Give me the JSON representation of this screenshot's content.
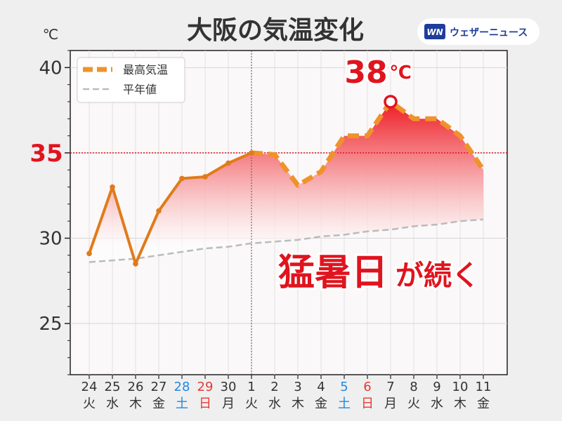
{
  "title": "大阪の気温変化",
  "unit_label": "℃",
  "logo": {
    "text": "ウェザーニュース",
    "mark": "WN"
  },
  "highlight": {
    "value_text": "38",
    "unit": "℃",
    "threshold_text": "35"
  },
  "headline": {
    "part1": "猛暑日",
    "part2": "が続く"
  },
  "colors": {
    "max_line": "#e07b1a",
    "forecast_line": "#f0922a",
    "normal_line": "#bbbbbb",
    "fill_top": "#ee1b24",
    "threshold": "#e0141e",
    "saturday": "#1e88e5",
    "sunday": "#e53935",
    "text": "#333333"
  },
  "chart_data": {
    "type": "line",
    "ylim": [
      22,
      41
    ],
    "yticks": [
      25,
      30,
      35,
      40
    ],
    "threshold": 35,
    "categories": [
      {
        "date": "24",
        "day": "火",
        "kind": "weekday"
      },
      {
        "date": "25",
        "day": "水",
        "kind": "weekday"
      },
      {
        "date": "26",
        "day": "木",
        "kind": "weekday"
      },
      {
        "date": "27",
        "day": "金",
        "kind": "weekday"
      },
      {
        "date": "28",
        "day": "土",
        "kind": "saturday"
      },
      {
        "date": "29",
        "day": "日",
        "kind": "sunday"
      },
      {
        "date": "30",
        "day": "月",
        "kind": "weekday"
      },
      {
        "date": "1",
        "day": "火",
        "kind": "weekday"
      },
      {
        "date": "2",
        "day": "水",
        "kind": "weekday"
      },
      {
        "date": "3",
        "day": "木",
        "kind": "weekday"
      },
      {
        "date": "4",
        "day": "金",
        "kind": "weekday"
      },
      {
        "date": "5",
        "day": "土",
        "kind": "saturday"
      },
      {
        "date": "6",
        "day": "日",
        "kind": "sunday"
      },
      {
        "date": "7",
        "day": "月",
        "kind": "weekday"
      },
      {
        "date": "8",
        "day": "火",
        "kind": "weekday"
      },
      {
        "date": "9",
        "day": "水",
        "kind": "weekday"
      },
      {
        "date": "10",
        "day": "木",
        "kind": "weekday"
      },
      {
        "date": "11",
        "day": "金",
        "kind": "weekday"
      }
    ],
    "series": [
      {
        "name": "最高気温",
        "style": "observed-solid-then-forecast-dashed",
        "values": [
          29.1,
          33.0,
          28.5,
          31.6,
          33.5,
          33.6,
          34.4,
          35.0,
          34.9,
          33.1,
          33.9,
          36.0,
          36.0,
          38.0,
          37.0,
          37.0,
          36.0,
          34.0
        ],
        "observed_until_index": 7
      },
      {
        "name": "平年値",
        "style": "dashed",
        "values": [
          28.6,
          28.7,
          28.8,
          29.0,
          29.2,
          29.4,
          29.5,
          29.7,
          29.8,
          29.9,
          30.1,
          30.2,
          30.4,
          30.5,
          30.7,
          30.8,
          31.0,
          31.1
        ]
      }
    ],
    "divider_index": 7,
    "peak_index": 13,
    "legend": "top-left"
  }
}
